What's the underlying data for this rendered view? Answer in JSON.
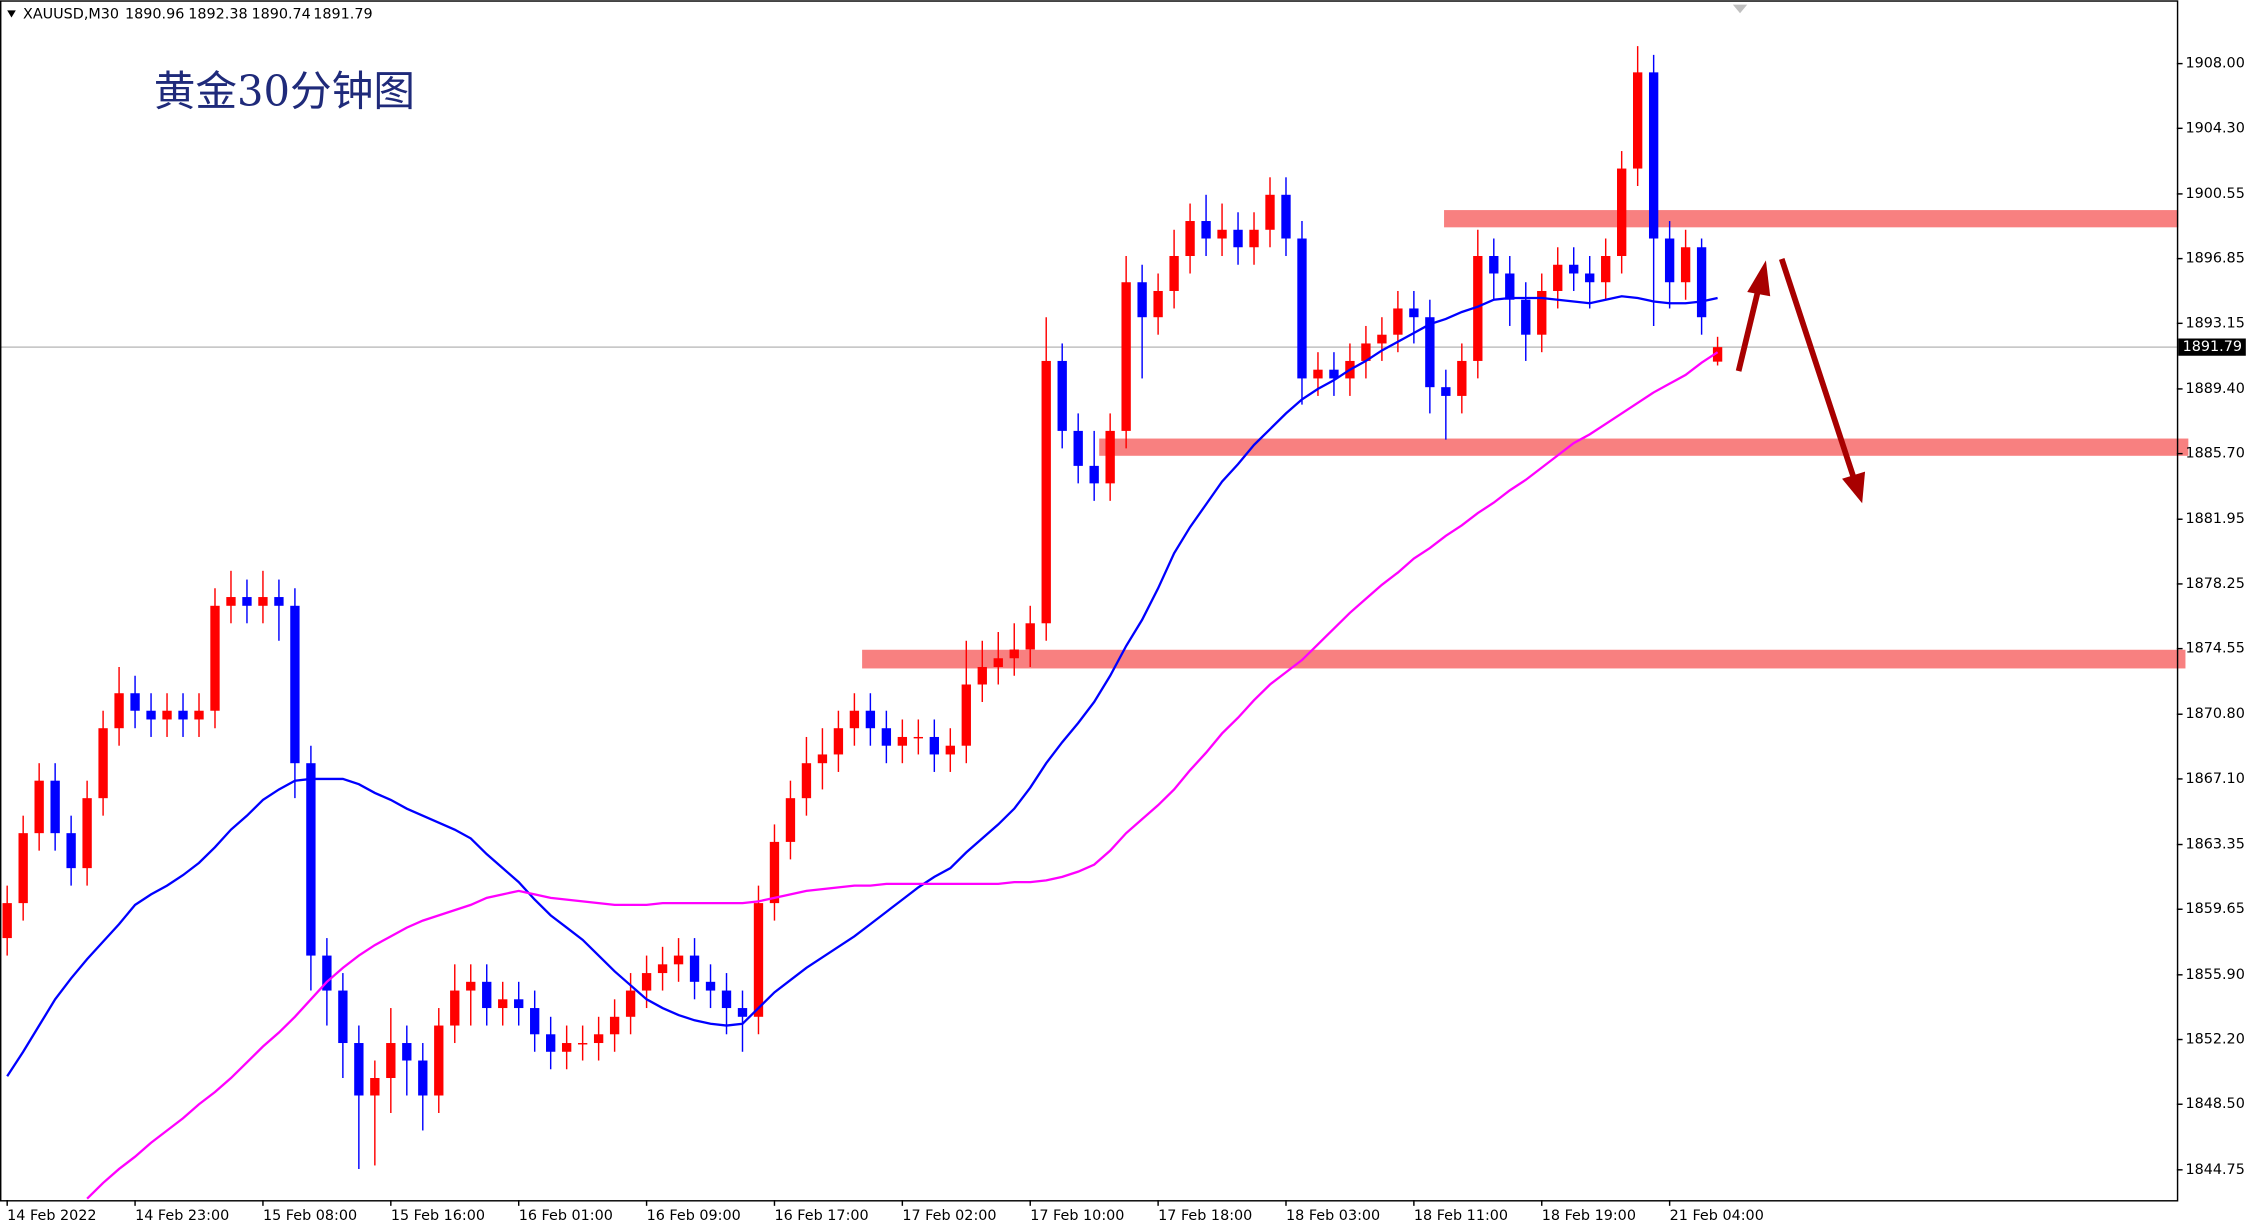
{
  "chart_data": {
    "type": "candlestick",
    "title": "黄金30分钟图",
    "symbol": "XAUUSD,M30",
    "up_color": "#ff0000",
    "down_color": "#0000ff",
    "grid": false,
    "ylim": [
      1843.02,
      1911.62
    ],
    "yticks": [
      {
        "value": 1908,
        "label": "1908.00"
      },
      {
        "value": 1904.3,
        "label": "1904.30"
      },
      {
        "value": 1900.55,
        "label": "1900.55"
      },
      {
        "value": 1896.85,
        "label": "1896.85"
      },
      {
        "value": 1893.15,
        "label": "1893.15"
      },
      {
        "value": 1889.4,
        "label": "1889.40"
      },
      {
        "value": 1885.7,
        "label": "1885.70"
      },
      {
        "value": 1881.95,
        "label": "1881.95"
      },
      {
        "value": 1878.25,
        "label": "1878.25"
      },
      {
        "value": 1874.55,
        "label": "1874.55"
      },
      {
        "value": 1870.8,
        "label": "1870.80"
      },
      {
        "value": 1867.1,
        "label": "1867.10"
      },
      {
        "value": 1863.35,
        "label": "1863.35"
      },
      {
        "value": 1859.65,
        "label": "1859.65"
      },
      {
        "value": 1855.9,
        "label": "1855.90"
      },
      {
        "value": 1852.2,
        "label": "1852.20"
      },
      {
        "value": 1848.5,
        "label": "1848.50"
      },
      {
        "value": 1844.75,
        "label": "1844.75"
      }
    ],
    "categories": [
      "14 Feb 2022",
      null,
      null,
      null,
      null,
      null,
      null,
      null,
      "14 Feb 23:00",
      null,
      null,
      null,
      null,
      null,
      null,
      null,
      "15 Feb 08:00",
      null,
      null,
      null,
      null,
      null,
      null,
      null,
      "15 Feb 16:00",
      null,
      null,
      null,
      null,
      null,
      null,
      null,
      "16 Feb 01:00",
      null,
      null,
      null,
      null,
      null,
      null,
      null,
      "16 Feb 09:00",
      null,
      null,
      null,
      null,
      null,
      null,
      null,
      "16 Feb 17:00",
      null,
      null,
      null,
      null,
      null,
      null,
      null,
      "17 Feb 02:00",
      null,
      null,
      null,
      null,
      null,
      null,
      null,
      "17 Feb 10:00",
      null,
      null,
      null,
      null,
      null,
      null,
      null,
      "17 Feb 18:00",
      null,
      null,
      null,
      null,
      null,
      null,
      null,
      "18 Feb 03:00",
      null,
      null,
      null,
      null,
      null,
      null,
      null,
      "18 Feb 11:00",
      null,
      null,
      null,
      null,
      null,
      null,
      null,
      "18 Feb 19:00",
      null,
      null,
      null,
      null,
      null,
      null,
      null,
      "21 Feb 04:00",
      null,
      null,
      null
    ],
    "open": [
      1858,
      1860,
      1864,
      1867,
      1864,
      1862,
      1866,
      1870,
      1872,
      1871,
      1870.5,
      1871,
      1870.5,
      1871,
      1877,
      1877.5,
      1877,
      1877.5,
      1877,
      1868,
      1857,
      1855,
      1852,
      1849,
      1850,
      1852,
      1851,
      1849,
      1853,
      1855,
      1855.5,
      1854,
      1854.5,
      1854,
      1852.5,
      1851.5,
      1852,
      1852,
      1852.5,
      1853.5,
      1855,
      1856,
      1856.5,
      1857,
      1855.5,
      1855,
      1854,
      1853.5,
      1860,
      1863.5,
      1866,
      1868,
      1868.5,
      1870,
      1871,
      1870,
      1869,
      1869.5,
      1869.5,
      1868.5,
      1869,
      1872.5,
      1873.5,
      1874,
      1874.5,
      1876,
      1891,
      1887,
      1885,
      1884,
      1887,
      1895.5,
      1893.5,
      1895,
      1897,
      1899,
      1898,
      1898.5,
      1897.5,
      1898.5,
      1900.5,
      1898,
      1890,
      1890.5,
      1890,
      1891,
      1892,
      1892.5,
      1894,
      1893.5,
      1889.5,
      1889,
      1891,
      1897,
      1896,
      1894.5,
      1892.5,
      1895,
      1896.5,
      1896,
      1895.5,
      1897,
      1902,
      1907.5,
      1898,
      1895.5,
      1897.5,
      1890.96
    ],
    "high": [
      1861,
      1865,
      1868,
      1868,
      1865,
      1867,
      1871,
      1873.5,
      1873,
      1872,
      1872,
      1872,
      1872,
      1878,
      1879,
      1878.5,
      1879,
      1878.5,
      1878,
      1869,
      1858,
      1856,
      1853,
      1851,
      1854,
      1853,
      1852,
      1854,
      1856.5,
      1856.5,
      1856.5,
      1855.5,
      1855.5,
      1855,
      1853.5,
      1853,
      1853,
      1853.5,
      1854.5,
      1856,
      1857,
      1857.5,
      1858,
      1858,
      1856.5,
      1856,
      1855,
      1861,
      1864.5,
      1867,
      1869.5,
      1870,
      1871,
      1872,
      1872,
      1871,
      1870.5,
      1870.5,
      1870.5,
      1870,
      1875,
      1875,
      1875.5,
      1876,
      1877,
      1893.5,
      1892,
      1888,
      1887,
      1888,
      1897,
      1896.5,
      1896,
      1898.5,
      1900,
      1900.5,
      1900,
      1899.5,
      1899.5,
      1901.5,
      1901.5,
      1899,
      1891.5,
      1891.5,
      1892,
      1893,
      1893.5,
      1895,
      1895,
      1894.5,
      1890.5,
      1892,
      1898.5,
      1898,
      1897,
      1895.5,
      1896,
      1897.5,
      1897.5,
      1897,
      1898,
      1903,
      1909,
      1908.5,
      1899,
      1898.5,
      1898,
      1892.38
    ],
    "low": [
      1857,
      1859,
      1863,
      1863,
      1861,
      1861,
      1865,
      1869,
      1870,
      1869.5,
      1869.5,
      1869.5,
      1869.5,
      1870,
      1876,
      1876,
      1876,
      1875,
      1866,
      1855,
      1853,
      1850,
      1844.8,
      1845,
      1848,
      1849,
      1847,
      1848,
      1852,
      1853,
      1853,
      1853,
      1853,
      1851.5,
      1850.5,
      1850.5,
      1851,
      1851,
      1851.5,
      1852.5,
      1854,
      1855,
      1855.5,
      1854.5,
      1854,
      1852.5,
      1851.5,
      1852.5,
      1859,
      1862.5,
      1865,
      1866.5,
      1867.5,
      1869,
      1869,
      1868,
      1868,
      1868.5,
      1867.5,
      1867.5,
      1868,
      1871.5,
      1872.5,
      1873,
      1873.5,
      1875,
      1886,
      1884,
      1883,
      1883,
      1886,
      1890,
      1892.5,
      1894,
      1896,
      1897,
      1897,
      1896.5,
      1896.5,
      1897.5,
      1897,
      1888.5,
      1889,
      1889,
      1889,
      1890,
      1891,
      1891.5,
      1892,
      1888,
      1886.5,
      1888,
      1890,
      1894.5,
      1893,
      1891,
      1891.5,
      1894,
      1895,
      1894,
      1894.5,
      1896,
      1901,
      1893,
      1894,
      1894.5,
      1892.5,
      1890.74
    ],
    "close": [
      1860,
      1864,
      1867,
      1864,
      1862,
      1866,
      1870,
      1872,
      1871,
      1870.5,
      1871,
      1870.5,
      1871,
      1877,
      1877.5,
      1877,
      1877.5,
      1877,
      1868,
      1857,
      1855,
      1852,
      1849,
      1850,
      1852,
      1851,
      1849,
      1853,
      1855,
      1855.5,
      1854,
      1854.5,
      1854,
      1852.5,
      1851.5,
      1852,
      1852,
      1852.5,
      1853.5,
      1855,
      1856,
      1856.5,
      1857,
      1855.5,
      1855,
      1854,
      1853.5,
      1860,
      1863.5,
      1866,
      1868,
      1868.5,
      1870,
      1871,
      1870,
      1869,
      1869.5,
      1869.5,
      1868.5,
      1869,
      1872.5,
      1873.5,
      1874,
      1874.5,
      1876,
      1891,
      1887,
      1885,
      1884,
      1887,
      1895.5,
      1893.5,
      1895,
      1897,
      1899,
      1898,
      1898.5,
      1897.5,
      1898.5,
      1900.5,
      1898,
      1890,
      1890.5,
      1890,
      1891,
      1892,
      1892.5,
      1894,
      1893.5,
      1889.5,
      1889,
      1891,
      1897,
      1896,
      1894.5,
      1892.5,
      1895,
      1896.5,
      1896,
      1895.5,
      1897,
      1902,
      1907.5,
      1898,
      1895.5,
      1897.5,
      1893.5,
      1891.79
    ],
    "lines": [
      {
        "color": "#0000ff",
        "values": [
          1850.1,
          1851.5,
          1853,
          1854.5,
          1855.7,
          1856.8,
          1857.8,
          1858.8,
          1859.9,
          1860.5,
          1861,
          1861.6,
          1862.3,
          1863.2,
          1864.2,
          1865,
          1865.9,
          1866.5,
          1867,
          1867.1,
          1867.1,
          1867.1,
          1866.8,
          1866.3,
          1865.9,
          1865.4,
          1865,
          1864.6,
          1864.2,
          1863.7,
          1862.8,
          1862,
          1861.2,
          1860.2,
          1859.3,
          1858.6,
          1857.9,
          1857,
          1856.1,
          1855.3,
          1854.5,
          1854,
          1853.6,
          1853.3,
          1853.1,
          1853,
          1853.1,
          1854,
          1854.9,
          1855.6,
          1856.3,
          1856.9,
          1857.5,
          1858.1,
          1858.8,
          1859.5,
          1860.2,
          1860.9,
          1861.5,
          1862,
          1862.9,
          1863.7,
          1864.5,
          1865.4,
          1866.6,
          1868,
          1869.2,
          1870.3,
          1871.5,
          1873,
          1874.7,
          1876.2,
          1878,
          1880,
          1881.5,
          1882.8,
          1884.1,
          1885.1,
          1886.2,
          1887.1,
          1888,
          1888.8,
          1889.4,
          1889.9,
          1890.5,
          1891,
          1891.6,
          1892.1,
          1892.6,
          1893.1,
          1893.4,
          1893.8,
          1894.1,
          1894.5,
          1894.6,
          1894.6,
          1894.6,
          1894.5,
          1894.4,
          1894.3,
          1894.5,
          1894.7,
          1894.6,
          1894.4,
          1894.3,
          1894.3,
          1894.4,
          1894.6
        ]
      },
      {
        "color": "#ff00ff",
        "values": [
          null,
          null,
          null,
          null,
          null,
          1843.1,
          1844,
          1844.8,
          1845.5,
          1846.3,
          1847,
          1847.7,
          1848.5,
          1849.2,
          1850,
          1850.9,
          1851.8,
          1852.6,
          1853.5,
          1854.5,
          1855.5,
          1856.3,
          1857,
          1857.6,
          1858.1,
          1858.6,
          1859,
          1859.3,
          1859.6,
          1859.9,
          1860.3,
          1860.5,
          1860.7,
          1860.5,
          1860.3,
          1860.2,
          1860.1,
          1860,
          1859.9,
          1859.9,
          1859.9,
          1860,
          1860,
          1860,
          1860,
          1860,
          1860,
          1860.1,
          1860.3,
          1860.5,
          1860.7,
          1860.8,
          1860.9,
          1861,
          1861,
          1861.1,
          1861.1,
          1861.1,
          1861.1,
          1861.1,
          1861.1,
          1861.1,
          1861.1,
          1861.2,
          1861.2,
          1861.3,
          1861.5,
          1861.8,
          1862.2,
          1863,
          1864,
          1864.8,
          1865.6,
          1866.5,
          1867.6,
          1868.6,
          1869.7,
          1870.6,
          1871.6,
          1872.5,
          1873.2,
          1873.9,
          1874.8,
          1875.7,
          1876.6,
          1877.4,
          1878.2,
          1878.9,
          1879.7,
          1880.3,
          1881,
          1881.6,
          1882.3,
          1882.9,
          1883.6,
          1884.2,
          1884.9,
          1885.6,
          1886.3,
          1886.8,
          1887.4,
          1888,
          1888.6,
          1889.2,
          1889.7,
          1890.2,
          1890.9,
          1891.5
        ]
      }
    ]
  }
}
